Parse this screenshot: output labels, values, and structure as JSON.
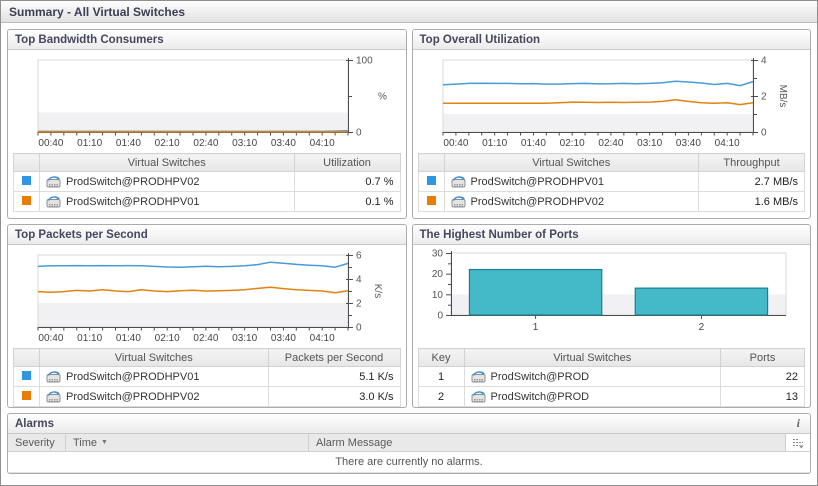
{
  "main_title": "Summary - All Virtual Switches",
  "colors": {
    "series_blue": "#2e96e2",
    "series_orange": "#e87d06",
    "line_blue": "#4a9ad8",
    "line_orange": "#e2830f",
    "bar_fill": "#44b9c7",
    "bar_border": "#1e7d8d",
    "band_gray": "#f1f1f4",
    "axis_dark": "#4c4c4c"
  },
  "icons": {
    "virtual_switch": "virtual-switch-icon",
    "info": "i",
    "sort_desc": "▼",
    "column_options": "column-options-icon"
  },
  "panels": [
    {
      "title": "Top Bandwidth Consumers",
      "table": {
        "switches_label": "Virtual Switches",
        "value_label": "Utilization",
        "rows": [
          {
            "name": "ProdSwitch@PRODHPV02",
            "value": "0.7 %"
          },
          {
            "name": "ProdSwitch@PRODHPV01",
            "value": "0.1 %"
          }
        ]
      }
    },
    {
      "title": "Top Overall Utilization",
      "table": {
        "switches_label": "Virtual Switches",
        "value_label": "Throughput",
        "rows": [
          {
            "name": "ProdSwitch@PRODHPV01",
            "value": "2.7 MB/s"
          },
          {
            "name": "ProdSwitch@PRODHPV02",
            "value": "1.6 MB/s"
          }
        ]
      }
    },
    {
      "title": "Top Packets per Second",
      "table": {
        "switches_label": "Virtual Switches",
        "value_label": "Packets per Second",
        "rows": [
          {
            "name": "ProdSwitch@PRODHPV01",
            "value": "5.1 K/s"
          },
          {
            "name": "ProdSwitch@PRODHPV02",
            "value": "3.0 K/s"
          }
        ]
      }
    },
    {
      "title": "The Highest Number of Ports",
      "table": {
        "key_label": "Key",
        "switches_label": "Virtual Switches",
        "value_label": "Ports",
        "rows": [
          {
            "key": "1",
            "name": "ProdSwitch@PROD",
            "value": "22"
          },
          {
            "key": "2",
            "name": "ProdSwitch@PROD",
            "value": "13"
          }
        ]
      }
    }
  ],
  "chart_data": [
    {
      "type": "line",
      "title": "Top Bandwidth Consumers",
      "x_ticks": [
        "00:40",
        "01:10",
        "01:40",
        "02:10",
        "02:40",
        "03:10",
        "03:40",
        "04:10"
      ],
      "ylim": [
        0,
        100
      ],
      "y_major": [
        0,
        100
      ],
      "y_minor": [
        50
      ],
      "y_unit": "%",
      "unit_rotated": false,
      "band_max": 27,
      "series": [
        {
          "name": "ProdSwitch@PRODHPV02",
          "color": "#4a9ad8",
          "values": [
            0.8,
            0.8,
            0.8,
            0.8,
            0.8,
            0.8,
            0.8,
            0.8,
            0.8,
            0.8,
            0.8,
            0.8,
            0.8,
            0.8,
            0.8,
            0.8,
            0.8,
            0.8,
            0.8,
            0.8,
            0.8,
            0.8,
            0.9,
            1.3,
            1.6
          ]
        },
        {
          "name": "ProdSwitch@PRODHPV01",
          "color": "#e2830f",
          "values": [
            0.15,
            0.15,
            0.15,
            0.15,
            0.15,
            0.15,
            0.15,
            0.15,
            0.15,
            0.15,
            0.15,
            0.15,
            0.15,
            0.15,
            0.15,
            0.15,
            0.15,
            0.15,
            0.15,
            0.15,
            0.15,
            0.15,
            0.15,
            0.15,
            0.15
          ]
        }
      ]
    },
    {
      "type": "line",
      "title": "Top Overall Utilization",
      "x_ticks": [
        "00:40",
        "01:10",
        "01:40",
        "02:10",
        "02:40",
        "03:10",
        "03:40",
        "04:10"
      ],
      "ylim": [
        0,
        4
      ],
      "y_major": [
        0,
        2,
        4
      ],
      "y_minor": [
        1,
        3
      ],
      "y_unit": "MB/s",
      "unit_rotated": true,
      "band_max": 1,
      "series": [
        {
          "name": "ProdSwitch@PRODHPV01",
          "color": "#4a9ad8",
          "values": [
            2.62,
            2.66,
            2.7,
            2.71,
            2.7,
            2.7,
            2.68,
            2.69,
            2.66,
            2.66,
            2.69,
            2.7,
            2.67,
            2.68,
            2.7,
            2.68,
            2.7,
            2.74,
            2.82,
            2.78,
            2.72,
            2.64,
            2.7,
            2.58,
            2.8
          ]
        },
        {
          "name": "ProdSwitch@PRODHPV02",
          "color": "#e2830f",
          "values": [
            1.6,
            1.6,
            1.6,
            1.6,
            1.6,
            1.6,
            1.6,
            1.6,
            1.6,
            1.63,
            1.66,
            1.65,
            1.64,
            1.65,
            1.64,
            1.65,
            1.66,
            1.7,
            1.79,
            1.7,
            1.62,
            1.6,
            1.62,
            1.52,
            1.62
          ]
        }
      ]
    },
    {
      "type": "line",
      "title": "Top Packets per Second",
      "x_ticks": [
        "00:40",
        "01:10",
        "01:40",
        "02:10",
        "02:40",
        "03:10",
        "03:40",
        "04:10"
      ],
      "ylim": [
        0,
        6
      ],
      "y_major": [
        0,
        2,
        4,
        6
      ],
      "y_minor": [
        1,
        3,
        5
      ],
      "y_unit": "K/s",
      "unit_rotated": true,
      "band_max": 2,
      "series": [
        {
          "name": "ProdSwitch@PRODHPV01",
          "color": "#4a9ad8",
          "values": [
            5.05,
            5.1,
            5.1,
            5.12,
            5.1,
            5.12,
            5.1,
            5.12,
            5.1,
            5.05,
            5.0,
            4.98,
            5.02,
            5.06,
            5.02,
            5.05,
            5.1,
            5.2,
            5.4,
            5.32,
            5.22,
            5.15,
            5.1,
            4.98,
            5.3
          ]
        },
        {
          "name": "ProdSwitch@PRODHPV02",
          "color": "#e2830f",
          "values": [
            2.95,
            2.9,
            2.95,
            3.05,
            3.0,
            3.1,
            3.0,
            2.95,
            3.1,
            3.0,
            2.95,
            3.02,
            3.06,
            3.0,
            3.02,
            3.05,
            3.1,
            3.22,
            3.32,
            3.2,
            3.1,
            3.05,
            3.0,
            2.86,
            3.02
          ]
        }
      ]
    },
    {
      "type": "bar",
      "title": "The Highest Number of Ports",
      "categories": [
        "1",
        "2"
      ],
      "values": [
        22,
        13
      ],
      "ylim": [
        0,
        30
      ],
      "y_major": [
        0,
        10,
        20,
        30
      ],
      "y_minor": [
        5,
        15,
        25
      ],
      "band_max": 10,
      "bar_fill": "#44b9c7",
      "bar_border": "#1e7d8d"
    }
  ],
  "alarms": {
    "title": "Alarms",
    "info_icon": "i",
    "headers": [
      "Severity",
      "Time",
      "Alarm Message"
    ],
    "sort_indicator": "▼",
    "empty_message": "There are currently no alarms."
  }
}
